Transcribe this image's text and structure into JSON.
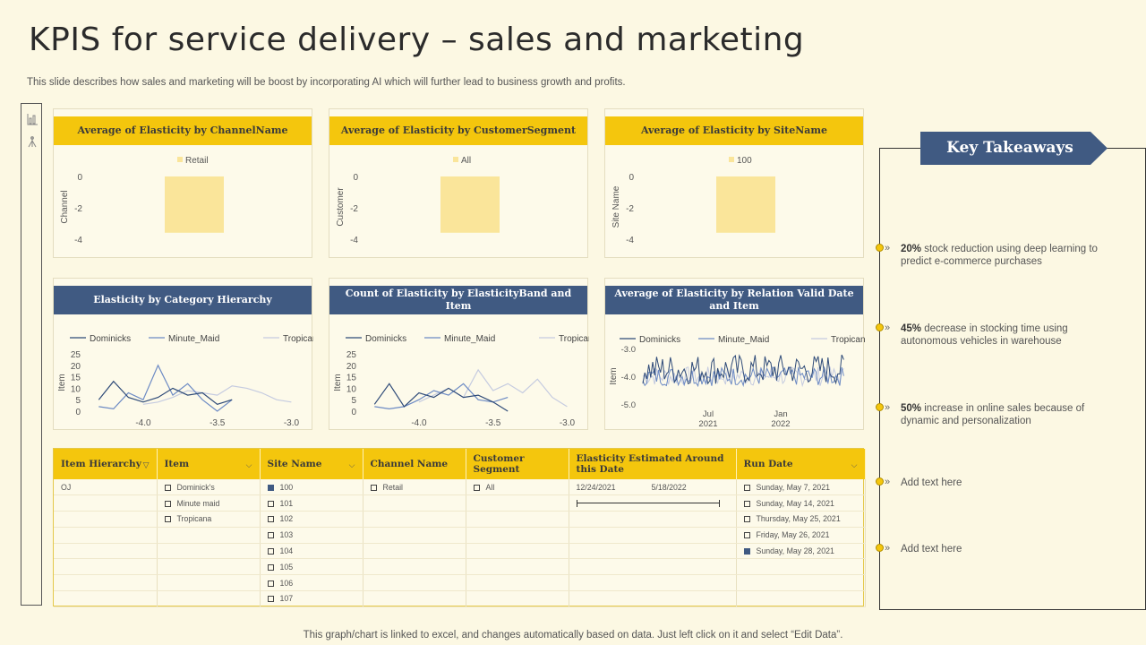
{
  "header": {
    "title": "KPIS for service delivery – sales and marketing",
    "subtitle": "This slide describes how sales and marketing will be boost by incorporating AI which will further lead to  business growth and profits."
  },
  "footer": "This graph/chart is linked to excel,  and changes automatically based on data. Just left click on it and select “Edit Data”.",
  "left_icons": [
    "bar-chart-icon",
    "tree-icon"
  ],
  "colors": {
    "yellow": "#f4c60d",
    "blue": "#405a82",
    "bg": "#fcf8e3",
    "bar": "#fae59a"
  },
  "chart_data": [
    {
      "type": "bar",
      "title": "Average of Elasticity by ChannelName",
      "ylabel": "Channel",
      "legend": [
        "Retail"
      ],
      "yticks": [
        "0",
        "-2",
        "-4"
      ],
      "ylim": [
        -4.3,
        0.4
      ],
      "values": [
        -3.6
      ]
    },
    {
      "type": "bar",
      "title": "Average of Elasticity by CustomerSegment",
      "ylabel": "Customer",
      "legend": [
        "All"
      ],
      "yticks": [
        "0",
        "-2",
        "-4"
      ],
      "ylim": [
        -4.3,
        0.4
      ],
      "values": [
        -3.6
      ]
    },
    {
      "type": "bar",
      "title": "Average of Elasticity by SiteName",
      "ylabel": "Site Name",
      "legend": [
        "100"
      ],
      "yticks": [
        "0",
        "-2",
        "-4"
      ],
      "ylim": [
        -4.3,
        0.4
      ],
      "values": [
        -3.6
      ]
    },
    {
      "type": "line",
      "title": "Elasticity by Category Hierarchy",
      "ylabel": "Item",
      "yticks": [
        "25",
        "20",
        "15",
        "10",
        "5",
        "0"
      ],
      "xticks": [
        "-4.0",
        "-3.5",
        "-3.0"
      ],
      "xlim": [
        -4.35,
        -2.9
      ],
      "ylim": [
        0,
        25
      ],
      "series": [
        {
          "name": "Dominicks",
          "x": [
            -4.3,
            -4.2,
            -4.1,
            -4.0,
            -3.9,
            -3.8,
            -3.7,
            -3.6,
            -3.5,
            -3.4
          ],
          "y": [
            5,
            13,
            6,
            4,
            6,
            10,
            7,
            8,
            3,
            5
          ]
        },
        {
          "name": "Minute_Maid",
          "x": [
            -4.3,
            -4.2,
            -4.1,
            -4.0,
            -3.9,
            -3.8,
            -3.7,
            -3.6,
            -3.5,
            -3.4
          ],
          "y": [
            2,
            1,
            8,
            5,
            20,
            7,
            12,
            5,
            0,
            5
          ]
        },
        {
          "name": "Tropicana",
          "x": [
            -4.0,
            -3.9,
            -3.8,
            -3.7,
            -3.6,
            -3.5,
            -3.4,
            -3.3,
            -3.2,
            -3.1,
            -3.0
          ],
          "y": [
            3,
            4,
            6,
            9,
            8,
            7,
            11,
            10,
            8,
            5,
            4
          ]
        }
      ]
    },
    {
      "type": "line",
      "title": "Count of Elasticity by ElasticityBand and Item",
      "ylabel": "Item",
      "yticks": [
        "25",
        "20",
        "15",
        "10",
        "5",
        "0"
      ],
      "xticks": [
        "-4.0",
        "-3.5",
        "-3.0"
      ],
      "xlim": [
        -4.35,
        -2.9
      ],
      "ylim": [
        0,
        25
      ],
      "series": [
        {
          "name": "Dominicks",
          "x": [
            -4.3,
            -4.2,
            -4.1,
            -4.0,
            -3.9,
            -3.8,
            -3.7,
            -3.6,
            -3.5,
            -3.4
          ],
          "y": [
            3,
            12,
            2,
            8,
            6,
            10,
            6,
            7,
            4,
            0
          ]
        },
        {
          "name": "Minute_Maid",
          "x": [
            -4.3,
            -4.2,
            -4.1,
            -4.0,
            -3.9,
            -3.8,
            -3.7,
            -3.6,
            -3.5,
            -3.4
          ],
          "y": [
            2,
            1,
            2,
            5,
            9,
            7,
            12,
            5,
            4,
            6
          ]
        },
        {
          "name": "Tropicana",
          "x": [
            -4.0,
            -3.9,
            -3.8,
            -3.7,
            -3.6,
            -3.5,
            -3.4,
            -3.3,
            -3.2,
            -3.1,
            -3.0
          ],
          "y": [
            4,
            7,
            10,
            6,
            18,
            9,
            12,
            8,
            14,
            6,
            2
          ]
        }
      ]
    },
    {
      "type": "line",
      "title": "Average of Elasticity by Relation Valid Date and Item",
      "ylabel": "Item",
      "yticks": [
        "-3.0",
        "-4.0",
        "-5.0"
      ],
      "xticks": [
        "Jul\n2021",
        "Jan\n2022"
      ],
      "ylim": [
        -5.0,
        -3.0
      ],
      "series_names": [
        "Dominicks",
        "Minute_Maid",
        "Tropicana"
      ]
    }
  ],
  "table": {
    "headers": [
      "Item Hierarchy",
      "Item",
      "Site Name",
      "Channel Name",
      "Customer Segment",
      "Elasticity Estimated Around this Date",
      "Run Date"
    ],
    "hierarchy": [
      "OJ"
    ],
    "items": [
      "Dominick's",
      "Minute maid",
      "Tropicana"
    ],
    "sites": [
      "100",
      "101",
      "102",
      "103",
      "104",
      "105",
      "106",
      "107"
    ],
    "channel": "Retail",
    "segment": "All",
    "date_start": "12/24/2021",
    "date_end": "5/18/2022",
    "run_dates": [
      "Sunday, May 7, 2021",
      "Sunday, May 14, 2021",
      "Thursday, May 25, 2021",
      "Friday, May 26, 2021",
      "Sunday, May 28, 2021"
    ]
  },
  "takeaways": {
    "title": "Key Takeaways",
    "items": [
      {
        "bold": "20%",
        "text": " stock reduction using deep learning to predict e-commerce purchases"
      },
      {
        "bold": "45%",
        "text": " decrease in stocking time using autonomous vehicles in warehouse"
      },
      {
        "bold": "50%",
        "text": " increase in online sales because of dynamic and personalization"
      },
      {
        "bold": "",
        "text": "Add text here"
      },
      {
        "bold": "",
        "text": "Add text here"
      }
    ]
  }
}
